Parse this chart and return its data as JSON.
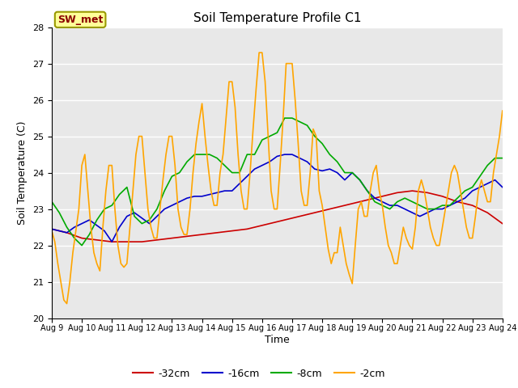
{
  "title": "Soil Temperature Profile C1",
  "xlabel": "Time",
  "ylabel": "Soil Temperature (C)",
  "ylim": [
    20.0,
    28.0
  ],
  "yticks": [
    20.0,
    21.0,
    22.0,
    23.0,
    24.0,
    25.0,
    26.0,
    27.0,
    28.0
  ],
  "xtick_labels": [
    "Aug 9",
    "Aug 10",
    "Aug 11",
    "Aug 12",
    "Aug 13",
    "Aug 14",
    "Aug 15",
    "Aug 16",
    "Aug 17",
    "Aug 18",
    "Aug 19",
    "Aug 20",
    "Aug 21",
    "Aug 22",
    "Aug 23",
    "Aug 24"
  ],
  "bg_color": "#e8e8e8",
  "legend_label": "SW_met",
  "series": {
    "d32": {
      "label": "-32cm",
      "color": "#cc0000",
      "lw": 1.2
    },
    "d16": {
      "label": "-16cm",
      "color": "#0000cc",
      "lw": 1.2
    },
    "d8": {
      "label": "-8cm",
      "color": "#00aa00",
      "lw": 1.2
    },
    "d2": {
      "label": "-2cm",
      "color": "#ffa500",
      "lw": 1.2
    }
  },
  "x_d32": [
    0,
    0.5,
    1,
    1.5,
    2,
    2.5,
    3,
    3.5,
    4,
    4.5,
    5,
    5.5,
    6,
    6.5,
    7,
    7.5,
    8,
    8.5,
    9,
    9.5,
    10,
    10.5,
    11,
    11.5,
    12,
    12.5,
    13,
    13.5,
    14,
    14.5,
    15
  ],
  "y_d32": [
    22.45,
    22.35,
    22.2,
    22.15,
    22.1,
    22.1,
    22.1,
    22.15,
    22.2,
    22.25,
    22.3,
    22.35,
    22.4,
    22.45,
    22.55,
    22.65,
    22.75,
    22.85,
    22.95,
    23.05,
    23.15,
    23.25,
    23.35,
    23.45,
    23.5,
    23.45,
    23.35,
    23.2,
    23.1,
    22.9,
    22.6
  ],
  "x_d16": [
    0,
    0.25,
    0.5,
    0.75,
    1,
    1.25,
    1.5,
    1.75,
    2,
    2.25,
    2.5,
    2.75,
    3,
    3.25,
    3.5,
    3.75,
    4,
    4.25,
    4.5,
    4.75,
    5,
    5.25,
    5.5,
    5.75,
    6,
    6.25,
    6.5,
    6.75,
    7,
    7.25,
    7.5,
    7.75,
    8,
    8.25,
    8.5,
    8.75,
    9,
    9.25,
    9.5,
    9.75,
    10,
    10.25,
    10.5,
    10.75,
    11,
    11.25,
    11.5,
    11.75,
    12,
    12.25,
    12.5,
    12.75,
    13,
    13.25,
    13.5,
    13.75,
    14,
    14.25,
    14.5,
    14.75,
    15
  ],
  "y_d16": [
    22.45,
    22.4,
    22.35,
    22.5,
    22.6,
    22.7,
    22.55,
    22.4,
    22.1,
    22.5,
    22.8,
    22.9,
    22.75,
    22.6,
    22.8,
    23.0,
    23.1,
    23.2,
    23.3,
    23.35,
    23.35,
    23.4,
    23.45,
    23.5,
    23.5,
    23.7,
    23.9,
    24.1,
    24.2,
    24.3,
    24.45,
    24.5,
    24.5,
    24.4,
    24.3,
    24.1,
    24.05,
    24.1,
    24.0,
    23.8,
    24.0,
    23.8,
    23.5,
    23.3,
    23.2,
    23.1,
    23.1,
    23.0,
    22.9,
    22.8,
    22.9,
    23.0,
    23.0,
    23.1,
    23.2,
    23.3,
    23.5,
    23.6,
    23.7,
    23.8,
    23.6
  ],
  "x_d8": [
    0,
    0.25,
    0.5,
    0.75,
    1,
    1.25,
    1.5,
    1.75,
    2,
    2.25,
    2.5,
    2.75,
    3,
    3.25,
    3.5,
    3.75,
    4,
    4.25,
    4.5,
    4.75,
    5,
    5.25,
    5.5,
    5.75,
    6,
    6.25,
    6.5,
    6.75,
    7,
    7.25,
    7.5,
    7.75,
    8,
    8.25,
    8.5,
    8.75,
    9,
    9.25,
    9.5,
    9.75,
    10,
    10.25,
    10.5,
    10.75,
    11,
    11.25,
    11.5,
    11.75,
    12,
    12.25,
    12.5,
    12.75,
    13,
    13.25,
    13.5,
    13.75,
    14,
    14.25,
    14.5,
    14.75,
    15
  ],
  "y_d8": [
    23.2,
    22.9,
    22.5,
    22.2,
    22.0,
    22.3,
    22.7,
    23.0,
    23.1,
    23.4,
    23.6,
    22.8,
    22.6,
    22.7,
    23.0,
    23.5,
    23.9,
    24.0,
    24.3,
    24.5,
    24.5,
    24.5,
    24.4,
    24.2,
    24.0,
    24.0,
    24.5,
    24.5,
    24.9,
    25.0,
    25.1,
    25.5,
    25.5,
    25.4,
    25.3,
    25.0,
    24.8,
    24.5,
    24.3,
    24.0,
    24.0,
    23.8,
    23.5,
    23.2,
    23.1,
    23.0,
    23.2,
    23.3,
    23.2,
    23.1,
    23.0,
    23.0,
    23.1,
    23.1,
    23.3,
    23.5,
    23.6,
    23.9,
    24.2,
    24.4,
    24.4
  ],
  "x_d2": [
    0,
    0.1,
    0.2,
    0.3,
    0.4,
    0.5,
    0.6,
    0.7,
    0.8,
    0.9,
    1.0,
    1.1,
    1.2,
    1.3,
    1.4,
    1.5,
    1.6,
    1.7,
    1.8,
    1.9,
    2.0,
    2.1,
    2.2,
    2.3,
    2.4,
    2.5,
    2.6,
    2.7,
    2.8,
    2.9,
    3.0,
    3.1,
    3.2,
    3.3,
    3.4,
    3.5,
    3.6,
    3.7,
    3.8,
    3.9,
    4.0,
    4.1,
    4.2,
    4.3,
    4.4,
    4.5,
    4.6,
    4.7,
    4.8,
    4.9,
    5.0,
    5.1,
    5.2,
    5.3,
    5.4,
    5.5,
    5.6,
    5.7,
    5.8,
    5.9,
    6.0,
    6.1,
    6.2,
    6.3,
    6.4,
    6.5,
    6.6,
    6.7,
    6.8,
    6.9,
    7.0,
    7.1,
    7.2,
    7.3,
    7.4,
    7.5,
    7.6,
    7.7,
    7.8,
    7.9,
    8.0,
    8.1,
    8.2,
    8.3,
    8.4,
    8.5,
    8.6,
    8.7,
    8.8,
    8.9,
    9.0,
    9.1,
    9.2,
    9.3,
    9.4,
    9.5,
    9.6,
    9.7,
    9.8,
    9.9,
    10.0,
    10.1,
    10.2,
    10.3,
    10.4,
    10.5,
    10.6,
    10.7,
    10.8,
    10.9,
    11.0,
    11.1,
    11.2,
    11.3,
    11.4,
    11.5,
    11.6,
    11.7,
    11.8,
    11.9,
    12.0,
    12.1,
    12.2,
    12.3,
    12.4,
    12.5,
    12.6,
    12.7,
    12.8,
    12.9,
    13.0,
    13.1,
    13.2,
    13.3,
    13.4,
    13.5,
    13.6,
    13.7,
    13.8,
    13.9,
    14.0,
    14.1,
    14.2,
    14.3,
    14.4,
    14.5,
    14.6,
    14.7,
    14.8,
    14.9,
    15.0
  ],
  "y_d2": [
    22.4,
    22.1,
    21.5,
    21.0,
    20.5,
    20.4,
    21.0,
    21.8,
    22.4,
    23.0,
    24.2,
    24.5,
    23.5,
    22.5,
    21.8,
    21.5,
    21.3,
    22.5,
    23.5,
    24.2,
    24.2,
    23.0,
    22.0,
    21.5,
    21.4,
    21.5,
    22.5,
    23.5,
    24.5,
    25.0,
    25.0,
    24.0,
    23.0,
    22.5,
    22.2,
    22.2,
    23.0,
    23.8,
    24.5,
    25.0,
    25.0,
    24.2,
    23.0,
    22.5,
    22.3,
    22.3,
    23.0,
    24.0,
    24.8,
    25.4,
    25.9,
    25.0,
    24.2,
    23.5,
    23.1,
    23.1,
    24.0,
    24.5,
    25.5,
    26.5,
    26.5,
    25.8,
    24.5,
    23.5,
    23.0,
    23.0,
    24.0,
    25.2,
    26.3,
    27.3,
    27.3,
    26.5,
    25.0,
    23.5,
    23.0,
    23.0,
    24.2,
    25.5,
    27.0,
    27.0,
    27.0,
    26.0,
    24.8,
    23.5,
    23.1,
    23.1,
    24.0,
    25.2,
    25.0,
    23.5,
    23.1,
    22.5,
    21.9,
    21.5,
    21.8,
    21.8,
    22.5,
    22.0,
    21.5,
    21.2,
    20.95,
    22.0,
    23.0,
    23.2,
    22.8,
    22.8,
    23.5,
    24.0,
    24.2,
    23.5,
    23.1,
    22.5,
    22.0,
    21.8,
    21.5,
    21.5,
    22.0,
    22.5,
    22.2,
    22.0,
    21.9,
    22.5,
    23.5,
    23.8,
    23.5,
    23.0,
    22.5,
    22.2,
    22.0,
    22.0,
    22.5,
    23.0,
    23.5,
    24.0,
    24.2,
    24.0,
    23.5,
    23.0,
    22.5,
    22.2,
    22.2,
    22.8,
    23.5,
    23.8,
    23.5,
    23.2,
    23.2,
    24.0,
    24.5,
    25.0,
    25.7
  ]
}
